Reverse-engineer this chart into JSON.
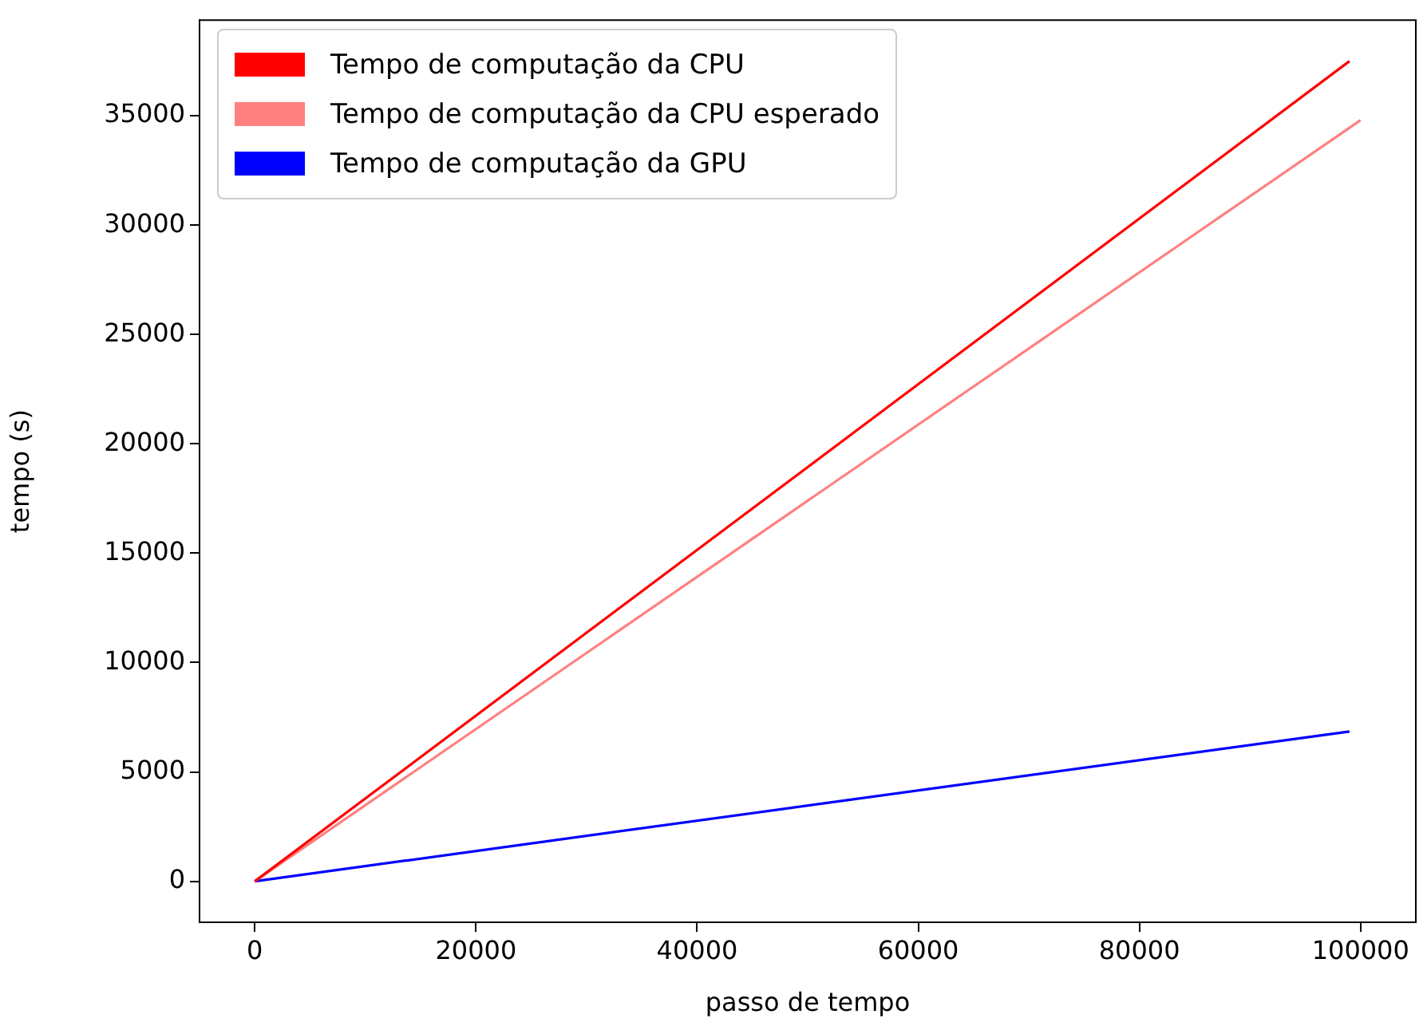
{
  "chart_data": {
    "type": "line",
    "xlabel": "passo de tempo",
    "ylabel": "tempo (s)",
    "xlim": [
      -5000,
      105000
    ],
    "xticks": [
      0,
      20000,
      40000,
      60000,
      80000,
      100000
    ],
    "ylim": [
      -1875,
      39375
    ],
    "yticks": [
      0,
      5000,
      10000,
      15000,
      20000,
      25000,
      30000,
      35000
    ],
    "legend": "top left",
    "grid": false,
    "marker": "none",
    "line_style": "solid",
    "series": [
      {
        "name": "Tempo de computação da CPU",
        "color": "#ff0000",
        "x": [
          0,
          99000
        ],
        "values": [
          0,
          37500
        ]
      },
      {
        "name": "Tempo de computação da CPU esperado",
        "color": "#ff8080",
        "x": [
          0,
          100000
        ],
        "values": [
          0,
          34800
        ]
      },
      {
        "name": "Tempo de computação da GPU",
        "color": "#0000ff",
        "x": [
          0,
          99000
        ],
        "values": [
          0,
          6850
        ]
      }
    ]
  }
}
